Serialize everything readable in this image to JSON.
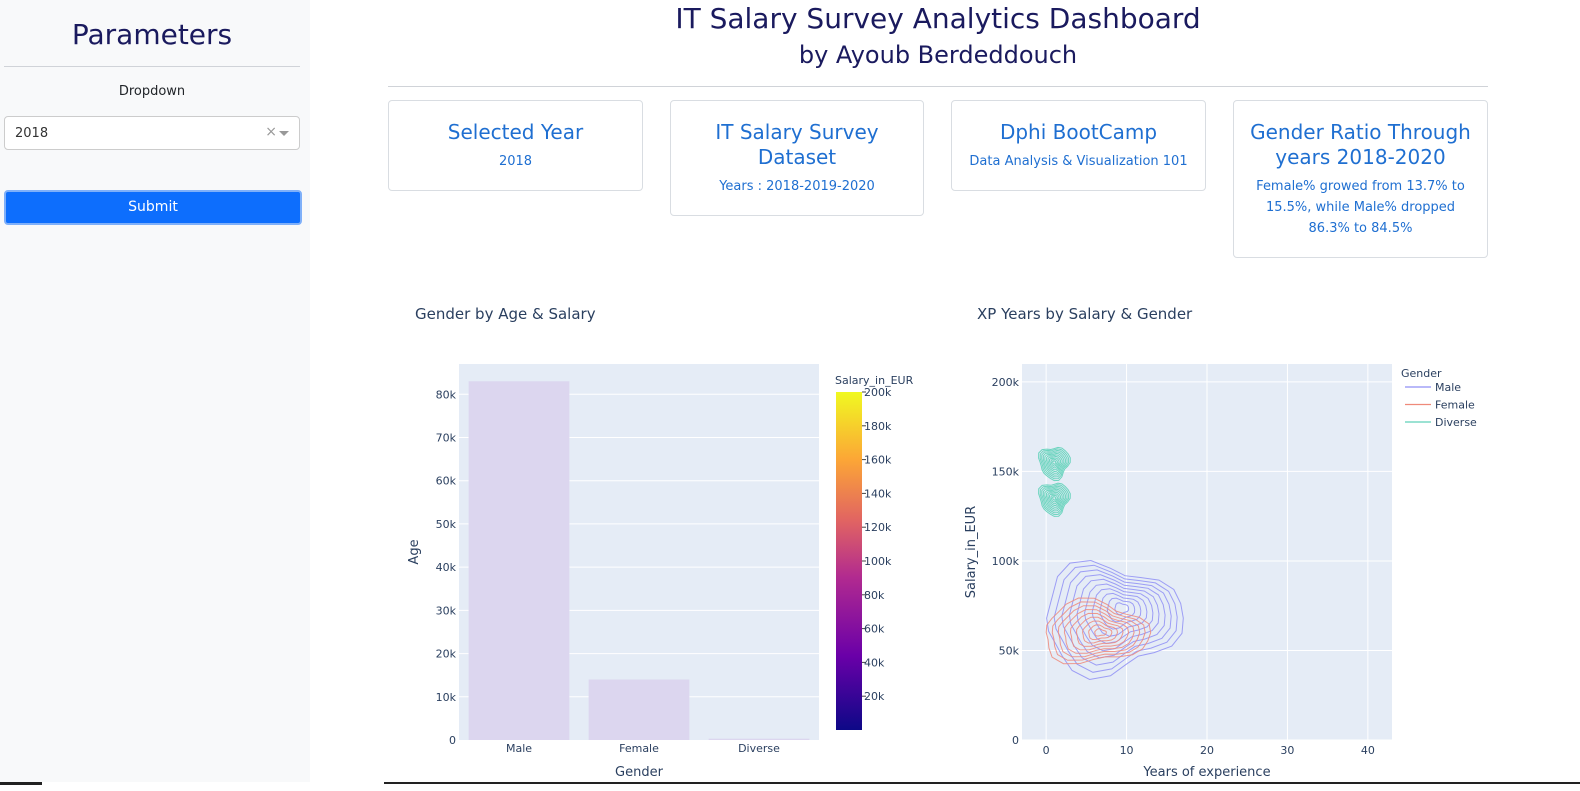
{
  "sidebar": {
    "title": "Parameters",
    "dropdown_label": "Dropdown",
    "dropdown_value": "2018",
    "clear_glyph": "×",
    "submit_label": "Submit"
  },
  "header": {
    "title": "IT Salary Survey Analytics Dashboard",
    "subtitle": "by Ayoub Berdeddouch"
  },
  "cards": [
    {
      "title": "Selected Year",
      "text": "2018"
    },
    {
      "title": "IT Salary Survey Dataset",
      "text": "Years : 2018-2019-2020"
    },
    {
      "title": "Dphi BootCamp",
      "text": "Data Analysis & Visualization 101"
    },
    {
      "title": "Gender Ratio Through years 2018-2020",
      "text": "Female% growed from 13.7% to 15.5%, while Male% dropped 86.3% to 84.5%"
    }
  ],
  "colors": {
    "accent": "#1f6fd1",
    "heading": "#1a1a5e",
    "submit": "#0d6efd",
    "plot_bg": "#e5ecf6",
    "bar_fill": "#dcd6ef",
    "male": "#8f8ff5",
    "female": "#ef8a7a",
    "diverse": "#5fd1b9"
  },
  "chart_data": [
    {
      "type": "bar",
      "title": "Gender by Age & Salary",
      "categories": [
        "Male",
        "Female",
        "Diverse"
      ],
      "values": [
        83000,
        14000,
        300
      ],
      "xlabel": "Gender",
      "ylabel": "Age",
      "ylim": [
        0,
        87000
      ],
      "yticks": [
        0,
        10000,
        20000,
        30000,
        40000,
        50000,
        60000,
        70000,
        80000
      ],
      "ytick_labels": [
        "0",
        "10k",
        "20k",
        "30k",
        "40k",
        "50k",
        "60k",
        "70k",
        "80k"
      ],
      "colorbar": {
        "title": "Salary_in_EUR",
        "range": [
          0,
          200000
        ],
        "ticks": [
          20000,
          40000,
          60000,
          80000,
          100000,
          120000,
          140000,
          160000,
          180000,
          200000
        ],
        "tick_labels": [
          "20k",
          "40k",
          "60k",
          "80k",
          "100k",
          "120k",
          "140k",
          "160k",
          "180k",
          "200k"
        ]
      },
      "grid": true
    },
    {
      "type": "contour",
      "title": "XP Years by Salary & Gender",
      "xlabel": "Years of experience",
      "ylabel": "Salary_in_EUR",
      "xlim": [
        -3,
        43
      ],
      "ylim": [
        0,
        210000
      ],
      "xticks": [
        0,
        10,
        20,
        30,
        40
      ],
      "xtick_labels": [
        "0",
        "10",
        "20",
        "30",
        "40"
      ],
      "yticks": [
        0,
        50000,
        100000,
        150000,
        200000
      ],
      "ytick_labels": [
        "0",
        "50k",
        "100k",
        "150k",
        "200k"
      ],
      "legend_title": "Gender",
      "legend_position": "top-right",
      "grid": true,
      "series": [
        {
          "name": "Male",
          "center": [
            8,
            68000
          ],
          "spread": [
            8.5,
            30000
          ]
        },
        {
          "name": "Female",
          "center": [
            6,
            60000
          ],
          "spread": [
            6.5,
            17000
          ]
        },
        {
          "name": "Diverse",
          "peaks": [
            [
              1,
              155000
            ],
            [
              1,
              135000
            ]
          ]
        }
      ]
    }
  ]
}
